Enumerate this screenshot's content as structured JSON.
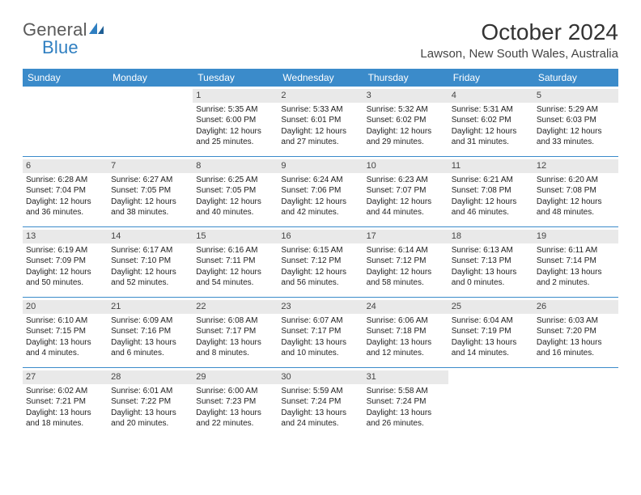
{
  "brand": {
    "word1": "General",
    "word2": "Blue"
  },
  "title": "October 2024",
  "location": "Lawson, New South Wales, Australia",
  "colors": {
    "header_bg": "#3b8bca",
    "header_fg": "#ffffff",
    "daynum_bg": "#e9e9e9",
    "row_border": "#3b8bca",
    "text": "#222222",
    "brand_gray": "#5a5a5a",
    "brand_blue": "#2f7fc1"
  },
  "typography": {
    "month_fontsize": 28,
    "location_fontsize": 15,
    "dow_fontsize": 12,
    "daynum_fontsize": 11,
    "body_fontsize": 10
  },
  "daysOfWeek": [
    "Sunday",
    "Monday",
    "Tuesday",
    "Wednesday",
    "Thursday",
    "Friday",
    "Saturday"
  ],
  "weeks": [
    [
      null,
      null,
      {
        "n": "1",
        "sr": "Sunrise: 5:35 AM",
        "ss": "Sunset: 6:00 PM",
        "dl1": "Daylight: 12 hours",
        "dl2": "and 25 minutes."
      },
      {
        "n": "2",
        "sr": "Sunrise: 5:33 AM",
        "ss": "Sunset: 6:01 PM",
        "dl1": "Daylight: 12 hours",
        "dl2": "and 27 minutes."
      },
      {
        "n": "3",
        "sr": "Sunrise: 5:32 AM",
        "ss": "Sunset: 6:02 PM",
        "dl1": "Daylight: 12 hours",
        "dl2": "and 29 minutes."
      },
      {
        "n": "4",
        "sr": "Sunrise: 5:31 AM",
        "ss": "Sunset: 6:02 PM",
        "dl1": "Daylight: 12 hours",
        "dl2": "and 31 minutes."
      },
      {
        "n": "5",
        "sr": "Sunrise: 5:29 AM",
        "ss": "Sunset: 6:03 PM",
        "dl1": "Daylight: 12 hours",
        "dl2": "and 33 minutes."
      }
    ],
    [
      {
        "n": "6",
        "sr": "Sunrise: 6:28 AM",
        "ss": "Sunset: 7:04 PM",
        "dl1": "Daylight: 12 hours",
        "dl2": "and 36 minutes."
      },
      {
        "n": "7",
        "sr": "Sunrise: 6:27 AM",
        "ss": "Sunset: 7:05 PM",
        "dl1": "Daylight: 12 hours",
        "dl2": "and 38 minutes."
      },
      {
        "n": "8",
        "sr": "Sunrise: 6:25 AM",
        "ss": "Sunset: 7:05 PM",
        "dl1": "Daylight: 12 hours",
        "dl2": "and 40 minutes."
      },
      {
        "n": "9",
        "sr": "Sunrise: 6:24 AM",
        "ss": "Sunset: 7:06 PM",
        "dl1": "Daylight: 12 hours",
        "dl2": "and 42 minutes."
      },
      {
        "n": "10",
        "sr": "Sunrise: 6:23 AM",
        "ss": "Sunset: 7:07 PM",
        "dl1": "Daylight: 12 hours",
        "dl2": "and 44 minutes."
      },
      {
        "n": "11",
        "sr": "Sunrise: 6:21 AM",
        "ss": "Sunset: 7:08 PM",
        "dl1": "Daylight: 12 hours",
        "dl2": "and 46 minutes."
      },
      {
        "n": "12",
        "sr": "Sunrise: 6:20 AM",
        "ss": "Sunset: 7:08 PM",
        "dl1": "Daylight: 12 hours",
        "dl2": "and 48 minutes."
      }
    ],
    [
      {
        "n": "13",
        "sr": "Sunrise: 6:19 AM",
        "ss": "Sunset: 7:09 PM",
        "dl1": "Daylight: 12 hours",
        "dl2": "and 50 minutes."
      },
      {
        "n": "14",
        "sr": "Sunrise: 6:17 AM",
        "ss": "Sunset: 7:10 PM",
        "dl1": "Daylight: 12 hours",
        "dl2": "and 52 minutes."
      },
      {
        "n": "15",
        "sr": "Sunrise: 6:16 AM",
        "ss": "Sunset: 7:11 PM",
        "dl1": "Daylight: 12 hours",
        "dl2": "and 54 minutes."
      },
      {
        "n": "16",
        "sr": "Sunrise: 6:15 AM",
        "ss": "Sunset: 7:12 PM",
        "dl1": "Daylight: 12 hours",
        "dl2": "and 56 minutes."
      },
      {
        "n": "17",
        "sr": "Sunrise: 6:14 AM",
        "ss": "Sunset: 7:12 PM",
        "dl1": "Daylight: 12 hours",
        "dl2": "and 58 minutes."
      },
      {
        "n": "18",
        "sr": "Sunrise: 6:13 AM",
        "ss": "Sunset: 7:13 PM",
        "dl1": "Daylight: 13 hours",
        "dl2": "and 0 minutes."
      },
      {
        "n": "19",
        "sr": "Sunrise: 6:11 AM",
        "ss": "Sunset: 7:14 PM",
        "dl1": "Daylight: 13 hours",
        "dl2": "and 2 minutes."
      }
    ],
    [
      {
        "n": "20",
        "sr": "Sunrise: 6:10 AM",
        "ss": "Sunset: 7:15 PM",
        "dl1": "Daylight: 13 hours",
        "dl2": "and 4 minutes."
      },
      {
        "n": "21",
        "sr": "Sunrise: 6:09 AM",
        "ss": "Sunset: 7:16 PM",
        "dl1": "Daylight: 13 hours",
        "dl2": "and 6 minutes."
      },
      {
        "n": "22",
        "sr": "Sunrise: 6:08 AM",
        "ss": "Sunset: 7:17 PM",
        "dl1": "Daylight: 13 hours",
        "dl2": "and 8 minutes."
      },
      {
        "n": "23",
        "sr": "Sunrise: 6:07 AM",
        "ss": "Sunset: 7:17 PM",
        "dl1": "Daylight: 13 hours",
        "dl2": "and 10 minutes."
      },
      {
        "n": "24",
        "sr": "Sunrise: 6:06 AM",
        "ss": "Sunset: 7:18 PM",
        "dl1": "Daylight: 13 hours",
        "dl2": "and 12 minutes."
      },
      {
        "n": "25",
        "sr": "Sunrise: 6:04 AM",
        "ss": "Sunset: 7:19 PM",
        "dl1": "Daylight: 13 hours",
        "dl2": "and 14 minutes."
      },
      {
        "n": "26",
        "sr": "Sunrise: 6:03 AM",
        "ss": "Sunset: 7:20 PM",
        "dl1": "Daylight: 13 hours",
        "dl2": "and 16 minutes."
      }
    ],
    [
      {
        "n": "27",
        "sr": "Sunrise: 6:02 AM",
        "ss": "Sunset: 7:21 PM",
        "dl1": "Daylight: 13 hours",
        "dl2": "and 18 minutes."
      },
      {
        "n": "28",
        "sr": "Sunrise: 6:01 AM",
        "ss": "Sunset: 7:22 PM",
        "dl1": "Daylight: 13 hours",
        "dl2": "and 20 minutes."
      },
      {
        "n": "29",
        "sr": "Sunrise: 6:00 AM",
        "ss": "Sunset: 7:23 PM",
        "dl1": "Daylight: 13 hours",
        "dl2": "and 22 minutes."
      },
      {
        "n": "30",
        "sr": "Sunrise: 5:59 AM",
        "ss": "Sunset: 7:24 PM",
        "dl1": "Daylight: 13 hours",
        "dl2": "and 24 minutes."
      },
      {
        "n": "31",
        "sr": "Sunrise: 5:58 AM",
        "ss": "Sunset: 7:24 PM",
        "dl1": "Daylight: 13 hours",
        "dl2": "and 26 minutes."
      },
      null,
      null
    ]
  ]
}
